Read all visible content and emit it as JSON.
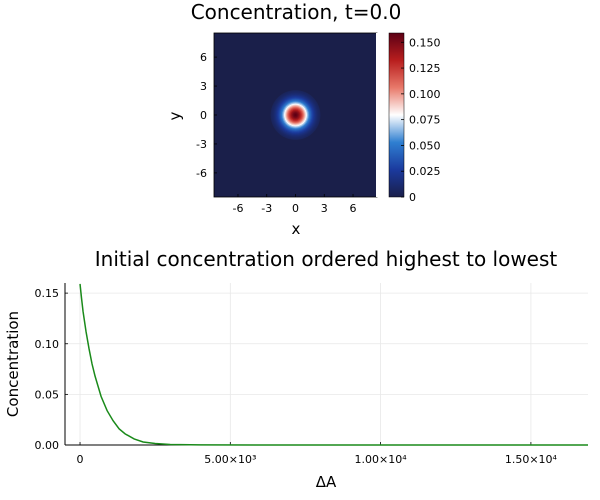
{
  "chart_data": [
    {
      "type": "heatmap",
      "title": "Concentration, t=0.0",
      "xlabel": "x",
      "ylabel": "y",
      "xlim": [
        -8.5,
        8.5
      ],
      "ylim": [
        -8.5,
        8.5
      ],
      "xticks": [
        "-6",
        "-3",
        "0",
        "3",
        "6"
      ],
      "yticks": [
        "6",
        "3",
        "0",
        "-3",
        "-6"
      ],
      "peak_center": [
        0,
        0
      ],
      "peak_value": 0.159,
      "peak_sigma": 1.0,
      "background_value": 0.0,
      "colorbar": {
        "ticks": [
          "0.150",
          "0.125",
          "0.100",
          "0.075",
          "0.050",
          "0.025",
          "0"
        ],
        "range": [
          0,
          0.159
        ],
        "colormap": [
          "#1a1f4a",
          "#1b3a9e",
          "#2f7fd1",
          "#ffffff",
          "#e8796a",
          "#b81e1e",
          "#5c0015"
        ]
      }
    },
    {
      "type": "line",
      "title": "Initial concentration ordered highest to lowest",
      "xlabel": "ΔA",
      "ylabel": "Concentration",
      "xlim": [
        -500,
        16900
      ],
      "ylim": [
        0,
        0.16
      ],
      "xticks": [
        "0",
        "5.00×10³",
        "1.00×10⁴",
        "1.50×10⁴"
      ],
      "yticks": [
        "0.15",
        "0.10",
        "0.05",
        "0.00"
      ],
      "grid": true,
      "series": [
        {
          "color": "#1a8a1a",
          "x": [
            0,
            50,
            100,
            200,
            300,
            400,
            500,
            700,
            900,
            1100,
            1300,
            1500,
            1800,
            2100,
            2500,
            3000,
            4000,
            6000,
            10000,
            16900
          ],
          "values": [
            0.159,
            0.145,
            0.132,
            0.112,
            0.095,
            0.08,
            0.068,
            0.048,
            0.034,
            0.024,
            0.016,
            0.011,
            0.006,
            0.003,
            0.0015,
            0.0005,
            0.0001,
            0.0,
            0.0,
            0.0
          ]
        }
      ]
    }
  ]
}
